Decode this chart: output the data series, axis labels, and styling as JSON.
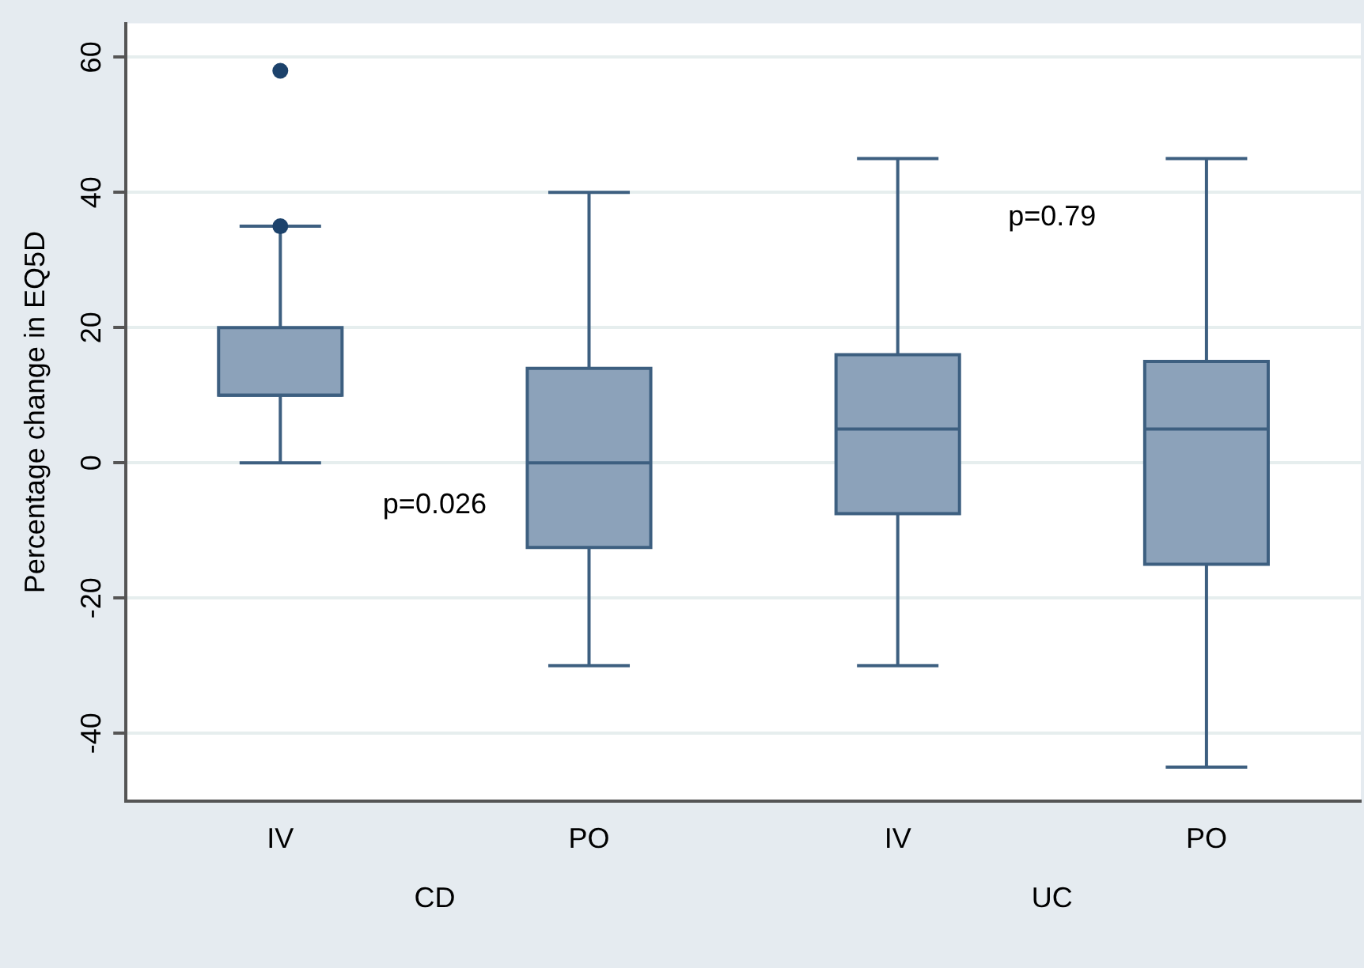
{
  "chart_data": {
    "type": "box",
    "ylabel": "Percentage change in EQ5D",
    "categories": [
      "IV",
      "PO",
      "IV",
      "PO"
    ],
    "color": "#8ca2ba",
    "boxes": [
      {
        "low": 0,
        "q1": 10,
        "median": 10,
        "q3": 20,
        "high": 35,
        "outliers": [
          58,
          35
        ]
      },
      {
        "low": -30,
        "q1": -12.5,
        "median": 0,
        "q3": 14,
        "high": 40
      },
      {
        "low": -30,
        "q1": -7.5,
        "median": 5,
        "q3": 16,
        "high": 45
      },
      {
        "low": -45,
        "q1": -15,
        "median": 5,
        "q3": 15,
        "high": 45
      }
    ],
    "ylim": [
      -50,
      65
    ],
    "yticks": [
      -40,
      -20,
      0,
      20,
      40,
      60
    ],
    "grid": "y",
    "legend": false,
    "annotations": [
      "p=0.026",
      "p=0.79",
      "CD",
      "UC"
    ]
  }
}
